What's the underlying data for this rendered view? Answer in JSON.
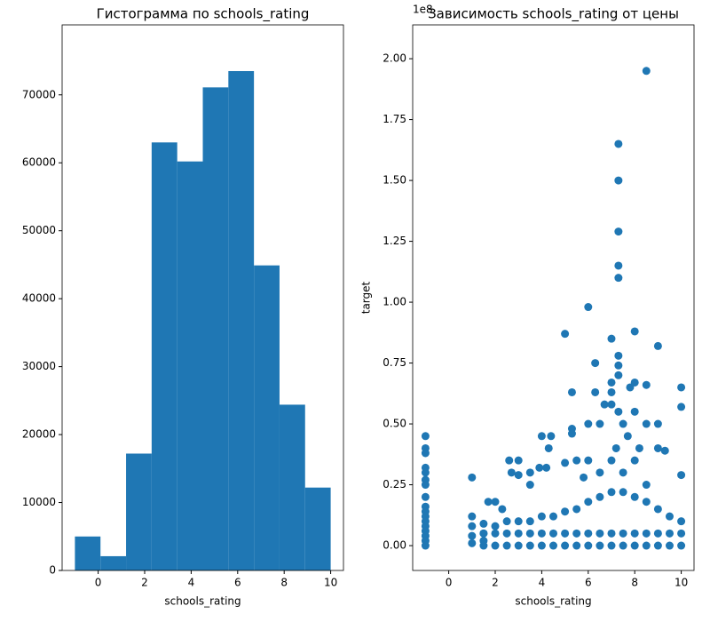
{
  "chart_data": [
    {
      "type": "histogram",
      "title": "Гистограмма по schools_rating",
      "x_label": "schools_rating",
      "color": "#1f77b4",
      "bins": [
        -1,
        0.1,
        1.2,
        2.3,
        3.4,
        4.5,
        5.6,
        6.7,
        7.8,
        8.9,
        10
      ],
      "values": [
        5000,
        2100,
        17200,
        63000,
        60200,
        71100,
        73500,
        44900,
        24400,
        12200
      ],
      "xlim": [
        -1.55,
        10.55
      ],
      "xticks": [
        0,
        2,
        4,
        6,
        8,
        10
      ],
      "ylim": [
        0,
        80300
      ],
      "yticks": [
        0,
        10000,
        20000,
        30000,
        40000,
        50000,
        60000,
        70000
      ]
    },
    {
      "type": "scatter",
      "title": "Зависимость schools_rating от цены",
      "x_label": "schools_rating",
      "y_label": "target",
      "y_offset_label": "1e8",
      "color": "#1f77b4",
      "x": [
        -1,
        -1,
        -1,
        -1,
        -1,
        -1,
        -1,
        -1,
        -1,
        -1,
        -1,
        -1,
        -1,
        -1,
        -1,
        -1,
        -1,
        1,
        1,
        1,
        1,
        1,
        1.5,
        1.5,
        1.7,
        2,
        2.3,
        2.6,
        2.7,
        3,
        3,
        3.5,
        3.5,
        3.9,
        4,
        4.2,
        4.3,
        4.4,
        5,
        5,
        5.3,
        5.3,
        5.3,
        5.5,
        5.8,
        6,
        6,
        6,
        6.3,
        6.3,
        6.5,
        6.7,
        7,
        7,
        7,
        7,
        7.3,
        7.3,
        7.3,
        7.3,
        7.3,
        7.3,
        7.3,
        7.3,
        7.3,
        7.5,
        7.8,
        8,
        8,
        8,
        8.5,
        8.5,
        8.5,
        9,
        9,
        9,
        9.3,
        10,
        10,
        10,
        1.5,
        2,
        2.5,
        3,
        3.5,
        4,
        4.5,
        5,
        5.5,
        6,
        6.5,
        7,
        7.5,
        8,
        8.5,
        9,
        9.5,
        10,
        1.5,
        2,
        2.5,
        3,
        3.5,
        4,
        4.5,
        5,
        5.5,
        6,
        6.5,
        7,
        7.5,
        8,
        8.5,
        9,
        9.5,
        10,
        1.5,
        2,
        2.5,
        3,
        3.5,
        4,
        4.5,
        5,
        5.5,
        6,
        6.5,
        7,
        7.5,
        8,
        8.5,
        9,
        9.5,
        10,
        6.5,
        7,
        7.2,
        7.5,
        7.7,
        8,
        8.2,
        8.5
      ],
      "values": [
        45000000,
        40000000,
        38000000,
        32000000,
        30000000,
        27000000,
        25000000,
        20000000,
        16000000,
        14000000,
        12000000,
        10000000,
        8000000,
        6000000,
        4000000,
        2000000,
        0,
        28000000,
        12000000,
        8000000,
        4000000,
        1000000,
        9000000,
        5000000,
        18000000,
        18000000,
        15000000,
        35000000,
        30000000,
        35000000,
        29000000,
        25000000,
        30000000,
        32000000,
        45000000,
        32000000,
        40000000,
        45000000,
        87000000,
        34000000,
        63000000,
        48000000,
        46000000,
        35000000,
        28000000,
        98000000,
        50000000,
        35000000,
        75000000,
        63000000,
        50000000,
        58000000,
        85000000,
        67000000,
        63000000,
        58000000,
        165000000,
        150000000,
        129000000,
        115000000,
        110000000,
        78000000,
        74000000,
        70000000,
        55000000,
        50000000,
        65000000,
        55000000,
        67000000,
        88000000,
        195000000,
        66000000,
        50000000,
        82000000,
        50000000,
        40000000,
        39000000,
        65000000,
        57000000,
        29000000,
        0,
        0,
        0,
        0,
        0,
        0,
        0,
        0,
        0,
        0,
        0,
        0,
        0,
        0,
        0,
        0,
        0,
        0,
        5000000,
        5000000,
        5000000,
        5000000,
        5000000,
        5000000,
        5000000,
        5000000,
        5000000,
        5000000,
        5000000,
        5000000,
        5000000,
        5000000,
        5000000,
        5000000,
        5000000,
        5000000,
        2000000,
        8000000,
        10000000,
        10000000,
        10000000,
        12000000,
        12000000,
        14000000,
        15000000,
        18000000,
        20000000,
        22000000,
        22000000,
        20000000,
        18000000,
        15000000,
        12000000,
        10000000,
        30000000,
        35000000,
        40000000,
        30000000,
        45000000,
        35000000,
        40000000,
        25000000
      ],
      "xlim": [
        -1.55,
        10.55
      ],
      "xticks": [
        0,
        2,
        4,
        6,
        8,
        10
      ],
      "ylim": [
        -10200000,
        213900000
      ],
      "yticks": [
        {
          "value": 0,
          "label": "0.00"
        },
        {
          "value": 25000000,
          "label": "0.25"
        },
        {
          "value": 50000000,
          "label": "0.50"
        },
        {
          "value": 75000000,
          "label": "0.75"
        },
        {
          "value": 100000000,
          "label": "1.00"
        },
        {
          "value": 125000000,
          "label": "1.25"
        },
        {
          "value": 150000000,
          "label": "1.50"
        },
        {
          "value": 175000000,
          "label": "1.75"
        },
        {
          "value": 200000000,
          "label": "2.00"
        }
      ]
    }
  ]
}
